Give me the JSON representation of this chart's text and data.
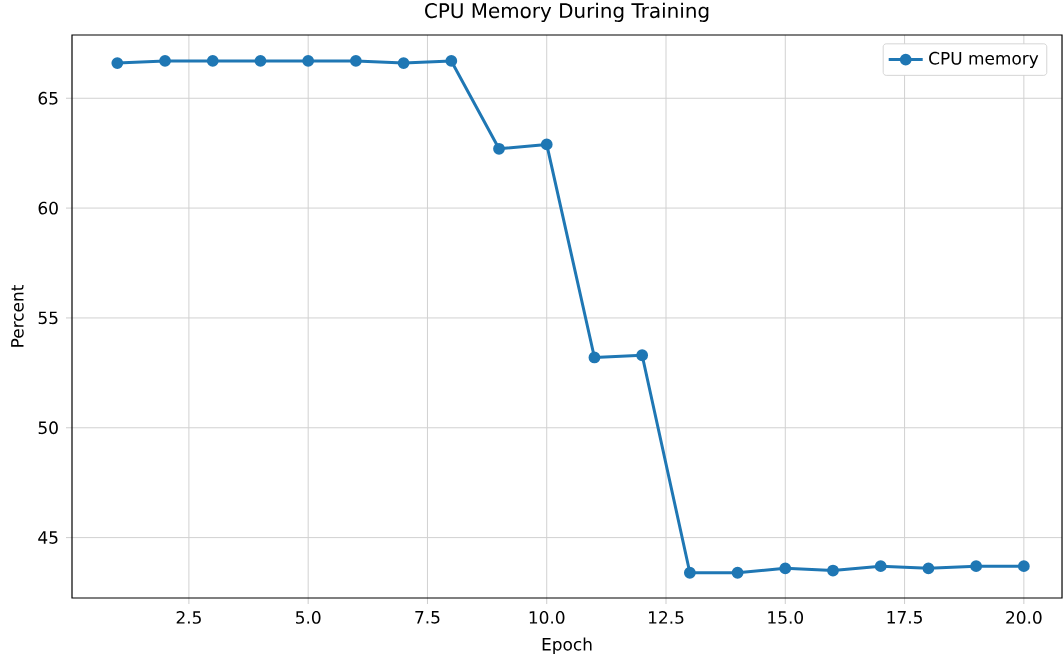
{
  "chart_data": {
    "type": "line",
    "title": "CPU Memory During Training",
    "xlabel": "Epoch",
    "ylabel": "Percent",
    "x": [
      1,
      2,
      3,
      4,
      5,
      6,
      7,
      8,
      9,
      10,
      11,
      12,
      13,
      14,
      15,
      16,
      17,
      18,
      19,
      20
    ],
    "series": [
      {
        "name": "CPU memory",
        "color": "#1f77b4",
        "values": [
          66.6,
          66.7,
          66.7,
          66.7,
          66.7,
          66.7,
          66.6,
          66.7,
          62.7,
          62.9,
          53.2,
          53.3,
          43.4,
          43.4,
          43.6,
          43.5,
          43.7,
          43.6,
          43.7,
          43.7
        ]
      }
    ],
    "xlim": [
      0.05,
      20.8
    ],
    "ylim": [
      42.25,
      67.88
    ],
    "xticks": [
      {
        "value": 2.5,
        "label": "2.5"
      },
      {
        "value": 5,
        "label": "5.0"
      },
      {
        "value": 7.5,
        "label": "7.5"
      },
      {
        "value": 10,
        "label": "10.0"
      },
      {
        "value": 12.5,
        "label": "12.5"
      },
      {
        "value": 15,
        "label": "15.0"
      },
      {
        "value": 17.5,
        "label": "17.5"
      },
      {
        "value": 20,
        "label": "20.0"
      }
    ],
    "yticks": [
      45,
      50,
      55,
      60,
      65
    ],
    "grid": true,
    "legend": "top right",
    "marker": "circle",
    "line_style": "solid"
  }
}
